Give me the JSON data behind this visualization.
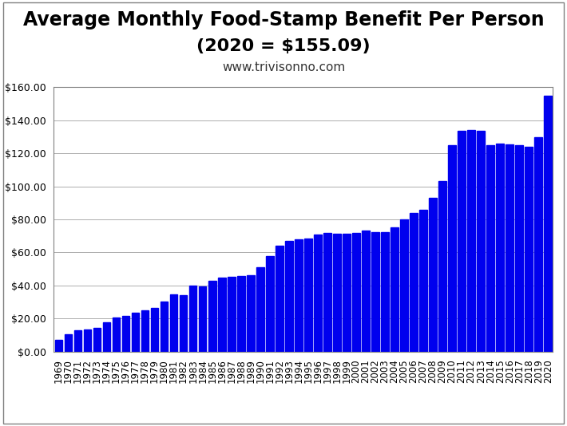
{
  "title_line1": "Average Monthly Food-Stamp Benefit Per Person",
  "title_line2": "(2020 = $155.09)",
  "subtitle": "www.trivisonno.com",
  "bar_color": "#0000EE",
  "background_color": "#FFFFFF",
  "years": [
    1969,
    1970,
    1971,
    1972,
    1973,
    1974,
    1975,
    1976,
    1977,
    1978,
    1979,
    1980,
    1981,
    1982,
    1983,
    1984,
    1985,
    1986,
    1987,
    1988,
    1989,
    1990,
    1991,
    1992,
    1993,
    1994,
    1995,
    1996,
    1997,
    1998,
    1999,
    2000,
    2001,
    2002,
    2003,
    2004,
    2005,
    2006,
    2007,
    2008,
    2009,
    2010,
    2011,
    2012,
    2013,
    2014,
    2015,
    2016,
    2017,
    2018,
    2019,
    2020
  ],
  "values": [
    7.0,
    10.5,
    13.0,
    13.5,
    14.5,
    17.5,
    20.5,
    21.5,
    23.5,
    25.0,
    26.5,
    30.0,
    34.5,
    34.0,
    40.0,
    39.5,
    43.0,
    44.5,
    45.0,
    45.5,
    46.0,
    51.0,
    58.0,
    64.0,
    67.0,
    68.0,
    68.5,
    71.0,
    72.0,
    71.5,
    71.5,
    72.0,
    73.0,
    72.5,
    72.5,
    75.0,
    80.0,
    84.0,
    86.0,
    93.0,
    103.0,
    125.0,
    133.5,
    134.0,
    133.5,
    125.0,
    126.0,
    125.5,
    125.0,
    124.0,
    130.0,
    155.09
  ],
  "ylim": [
    0,
    160
  ],
  "yticks": [
    0,
    20,
    40,
    60,
    80,
    100,
    120,
    140,
    160
  ],
  "grid_color": "#A0A0A0",
  "grid_linewidth": 0.6,
  "title_fontsize": 17,
  "subtitle2_fontsize": 11,
  "tick_label_fontsize": 8.5,
  "ytick_fontsize": 9,
  "border_color": "#808080"
}
